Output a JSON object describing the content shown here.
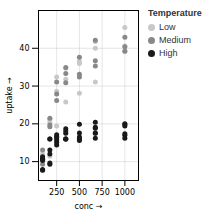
{
  "chart_data": {
    "type": "scatter",
    "title": "",
    "xlabel": "conc",
    "ylabel": "uptake",
    "legend_title": "Temperature",
    "x": [
      95,
      175,
      250,
      350,
      500,
      675,
      1000,
      95,
      175,
      250,
      350,
      500,
      675,
      1000,
      95,
      175,
      250,
      350,
      500,
      675,
      1000
    ],
    "series": [
      {
        "name": "Low",
        "color": "#c8c8c8",
        "values": [
          7.7,
          11.4,
          19.4,
          25.8,
          28.1,
          31.1,
          39.2,
          11.3,
          20.5,
          28.6,
          31.8,
          36.5,
          41.8,
          40.6,
          12.0,
          21.2,
          32.4,
          34.7,
          36.0,
          40.0,
          45.5
        ]
      },
      {
        "name": "Medium",
        "color": "#888888",
        "values": [
          13.1,
          21.5,
          31.1,
          34.9,
          37.6,
          42.1,
          42.9,
          10.6,
          19.2,
          26.2,
          30.9,
          32.4,
          35.3,
          39.2,
          9.3,
          19.7,
          27.9,
          33.3,
          33.1,
          36.7,
          40.4
        ]
      },
      {
        "name": "High",
        "color": "#1a1a1a",
        "x": [
          95,
          175,
          250,
          350,
          500,
          675,
          1000,
          95,
          175,
          250,
          350,
          500,
          675,
          1000,
          95,
          175,
          250,
          350,
          500,
          675,
          1000,
          95,
          175,
          250,
          350,
          500,
          675,
          1000,
          95,
          175,
          250,
          350,
          500,
          675,
          1000,
          95,
          175,
          250,
          350,
          500,
          675,
          1000
        ],
        "values": [
          7.7,
          9.3,
          15.1,
          16.0,
          15.6,
          16.2,
          16.2,
          10.6,
          12.0,
          15.7,
          16.0,
          16.5,
          18.8,
          19.4,
          7.9,
          9.6,
          14.4,
          16.0,
          16.1,
          17.6,
          17.0,
          10.9,
          16.0,
          17.1,
          18.7,
          17.6,
          19.1,
          19.8,
          11.3,
          13.1,
          16.3,
          17.5,
          16.0,
          17.5,
          17.4,
          10.3,
          16.0,
          16.6,
          18.1,
          19.9,
          20.4,
          20.0
        ]
      }
    ],
    "xlim": [
      50,
      1150
    ],
    "ylim": [
      5,
      50
    ],
    "xticks": [
      250,
      500,
      750,
      1000
    ],
    "yticks": [
      10,
      20,
      30,
      40
    ],
    "grid": true,
    "legend": "right"
  }
}
